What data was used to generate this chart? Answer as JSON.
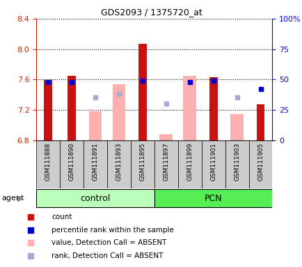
{
  "title": "GDS2093 / 1375720_at",
  "samples": [
    "GSM111888",
    "GSM111890",
    "GSM111891",
    "GSM111893",
    "GSM111895",
    "GSM111897",
    "GSM111899",
    "GSM111901",
    "GSM111903",
    "GSM111905"
  ],
  "groups": [
    "control",
    "control",
    "control",
    "control",
    "control",
    "PCN",
    "PCN",
    "PCN",
    "PCN",
    "PCN"
  ],
  "ylim_left": [
    6.8,
    8.4
  ],
  "ylim_right": [
    0,
    100
  ],
  "y_ticks_left": [
    6.8,
    7.2,
    7.6,
    8.0,
    8.4
  ],
  "y_ticks_right": [
    0,
    25,
    50,
    75,
    100
  ],
  "red_bars": {
    "GSM111888": 7.59,
    "GSM111890": 7.65,
    "GSM111891": null,
    "GSM111893": null,
    "GSM111895": 8.07,
    "GSM111897": null,
    "GSM111899": null,
    "GSM111901": 7.63,
    "GSM111903": null,
    "GSM111905": 7.27
  },
  "pink_bars": {
    "GSM111888": null,
    "GSM111890": null,
    "GSM111891": 7.18,
    "GSM111893": 7.54,
    "GSM111895": null,
    "GSM111897": 6.88,
    "GSM111899": 7.65,
    "GSM111901": null,
    "GSM111903": 7.14,
    "GSM111905": null
  },
  "blue_squares": {
    "GSM111888": 48,
    "GSM111890": 48,
    "GSM111891": null,
    "GSM111893": null,
    "GSM111895": 49,
    "GSM111897": null,
    "GSM111899": 48,
    "GSM111901": 49,
    "GSM111903": null,
    "GSM111905": 42
  },
  "lavender_squares": {
    "GSM111888": null,
    "GSM111890": null,
    "GSM111891": 35,
    "GSM111893": 38,
    "GSM111895": null,
    "GSM111897": 30,
    "GSM111899": null,
    "GSM111901": null,
    "GSM111903": 35,
    "GSM111905": null
  },
  "red_bar_width": 0.35,
  "pink_bar_width": 0.55,
  "red_color": "#CC1111",
  "pink_color": "#FFB0B0",
  "blue_color": "#0000CC",
  "lavender_color": "#AAAACC",
  "group_color_control": "#BBFFBB",
  "group_color_pcn": "#55EE55",
  "tick_color_left": "#CC2200",
  "tick_color_right": "#0000EE",
  "legend_items": [
    {
      "color": "#CC1111",
      "label": "count"
    },
    {
      "color": "#0000CC",
      "label": "percentile rank within the sample"
    },
    {
      "color": "#FFB0B0",
      "label": "value, Detection Call = ABSENT"
    },
    {
      "color": "#AAAACC",
      "label": "rank, Detection Call = ABSENT"
    }
  ]
}
